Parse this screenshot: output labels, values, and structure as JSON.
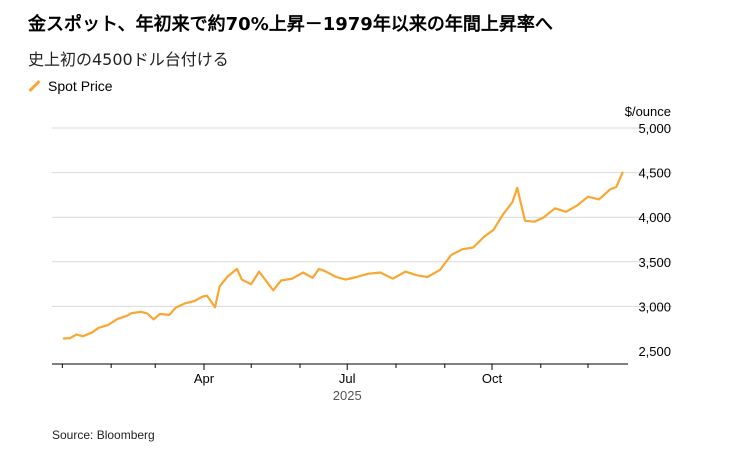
{
  "header": {
    "title": "金スポット、年初来で約70%上昇－1979年以来の年間上昇率へ",
    "subtitle": "史上初の4500ドル台付ける"
  },
  "legend": {
    "label": "Spot Price",
    "color": "#f7a732"
  },
  "footer": {
    "source": "Source: Bloomberg"
  },
  "chart_data": {
    "type": "line",
    "title": "金スポット、年初来で約70%上昇－1979年以来の年間上昇率へ",
    "subtitle": "史上初の4500ドル台付ける",
    "y_unit_label": "$/ounce",
    "y_ticks": [
      2500,
      3000,
      3500,
      4000,
      4500,
      5000
    ],
    "y_tick_labels": [
      "2,500",
      "3,000",
      "3,500",
      "4,000",
      "4,500",
      "5,000"
    ],
    "ylim": [
      2450,
      5000
    ],
    "x_tick_labels": [
      "Apr",
      "Jul",
      "Oct"
    ],
    "x_tick_dates": [
      "2025-04-01",
      "2025-07-01",
      "2025-10-01"
    ],
    "x_year_label": "2025",
    "xlim": [
      "2025-01-01",
      "2025-12-31"
    ],
    "grid": "horizontal",
    "legend_position": "top-left",
    "series": [
      {
        "name": "Spot Price",
        "color": "#f7a732",
        "x": [
          "2025-01-02",
          "2025-01-06",
          "2025-01-10",
          "2025-01-14",
          "2025-01-20",
          "2025-01-24",
          "2025-01-30",
          "2025-02-05",
          "2025-02-11",
          "2025-02-14",
          "2025-02-20",
          "2025-02-24",
          "2025-02-28",
          "2025-03-04",
          "2025-03-10",
          "2025-03-14",
          "2025-03-20",
          "2025-03-26",
          "2025-03-31",
          "2025-04-03",
          "2025-04-08",
          "2025-04-11",
          "2025-04-16",
          "2025-04-22",
          "2025-04-25",
          "2025-05-01",
          "2025-05-06",
          "2025-05-09",
          "2025-05-15",
          "2025-05-20",
          "2025-05-27",
          "2025-06-03",
          "2025-06-09",
          "2025-06-13",
          "2025-06-17",
          "2025-06-24",
          "2025-06-30",
          "2025-07-07",
          "2025-07-14",
          "2025-07-22",
          "2025-07-30",
          "2025-08-07",
          "2025-08-14",
          "2025-08-21",
          "2025-08-29",
          "2025-09-05",
          "2025-09-12",
          "2025-09-19",
          "2025-09-26",
          "2025-10-02",
          "2025-10-08",
          "2025-10-14",
          "2025-10-17",
          "2025-10-22",
          "2025-10-28",
          "2025-11-03",
          "2025-11-10",
          "2025-11-17",
          "2025-11-24",
          "2025-12-01",
          "2025-12-08",
          "2025-12-15",
          "2025-12-19",
          "2025-12-23"
        ],
        "values": [
          2640,
          2645,
          2685,
          2665,
          2710,
          2760,
          2790,
          2860,
          2895,
          2925,
          2940,
          2920,
          2855,
          2915,
          2905,
          2985,
          3035,
          3060,
          3110,
          3120,
          2990,
          3225,
          3335,
          3420,
          3300,
          3250,
          3390,
          3320,
          3180,
          3290,
          3310,
          3380,
          3320,
          3420,
          3395,
          3330,
          3300,
          3330,
          3365,
          3380,
          3310,
          3390,
          3350,
          3330,
          3410,
          3575,
          3640,
          3660,
          3780,
          3860,
          4030,
          4170,
          4330,
          3960,
          3950,
          4000,
          4100,
          4060,
          4130,
          4230,
          4200,
          4310,
          4340,
          4500
        ]
      }
    ]
  }
}
